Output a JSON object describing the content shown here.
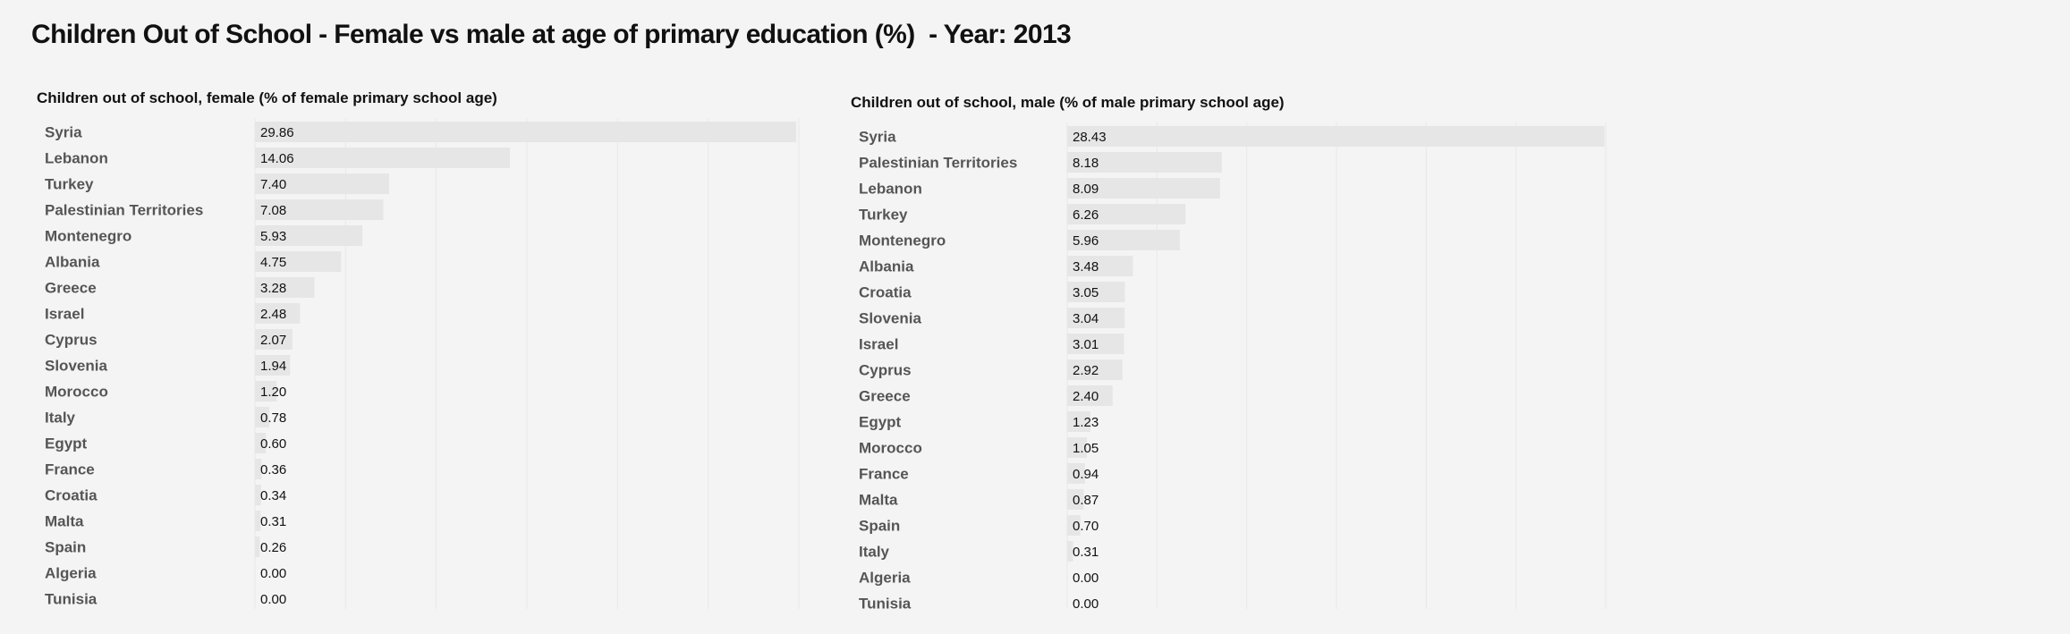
{
  "page": {
    "title": "Children Out of School - Female vs male at age of primary education (%)  - Year: 2013"
  },
  "chart_data": [
    {
      "type": "bar",
      "orientation": "horizontal",
      "title": "Children out of school, female (% of female primary school age)",
      "categories": [
        "Syria",
        "Lebanon",
        "Turkey",
        "Palestinian Territories",
        "Montenegro",
        "Albania",
        "Greece",
        "Israel",
        "Cyprus",
        "Slovenia",
        "Morocco",
        "Italy",
        "Egypt",
        "France",
        "Croatia",
        "Malta",
        "Spain",
        "Algeria",
        "Tunisia"
      ],
      "values": [
        29.86,
        14.06,
        7.4,
        7.08,
        5.93,
        4.75,
        3.28,
        2.48,
        2.07,
        1.94,
        1.2,
        0.78,
        0.6,
        0.36,
        0.34,
        0.31,
        0.26,
        0.0,
        0.0
      ],
      "value_labels": [
        "29.86",
        "14.06",
        "7.40",
        "7.08",
        "5.93",
        "4.75",
        "3.28",
        "2.48",
        "2.07",
        "1.94",
        "1.20",
        "0.78",
        "0.60",
        "0.36",
        "0.34",
        "0.31",
        "0.26",
        "0.00",
        "0.00"
      ],
      "xlim": [
        0,
        30
      ],
      "grid": true,
      "bar_color": "#e6e6e6"
    },
    {
      "type": "bar",
      "orientation": "horizontal",
      "title": "Children out of school, male (% of male primary school age)",
      "categories": [
        "Syria",
        "Palestinian Territories",
        "Lebanon",
        "Turkey",
        "Montenegro",
        "Albania",
        "Croatia",
        "Slovenia",
        "Israel",
        "Cyprus",
        "Greece",
        "Egypt",
        "Morocco",
        "France",
        "Malta",
        "Spain",
        "Italy",
        "Algeria",
        "Tunisia"
      ],
      "values": [
        28.43,
        8.18,
        8.09,
        6.26,
        5.96,
        3.48,
        3.05,
        3.04,
        3.01,
        2.92,
        2.4,
        1.23,
        1.05,
        0.94,
        0.87,
        0.7,
        0.31,
        0.0,
        0.0
      ],
      "value_labels": [
        "28.43",
        "8.18",
        "8.09",
        "6.26",
        "5.96",
        "3.48",
        "3.05",
        "3.04",
        "3.01",
        "2.92",
        "2.40",
        "1.23",
        "1.05",
        "0.94",
        "0.87",
        "0.70",
        "0.31",
        "0.00",
        "0.00"
      ],
      "xlim": [
        0,
        28.5
      ],
      "grid": true,
      "bar_color": "#e6e6e6"
    }
  ]
}
